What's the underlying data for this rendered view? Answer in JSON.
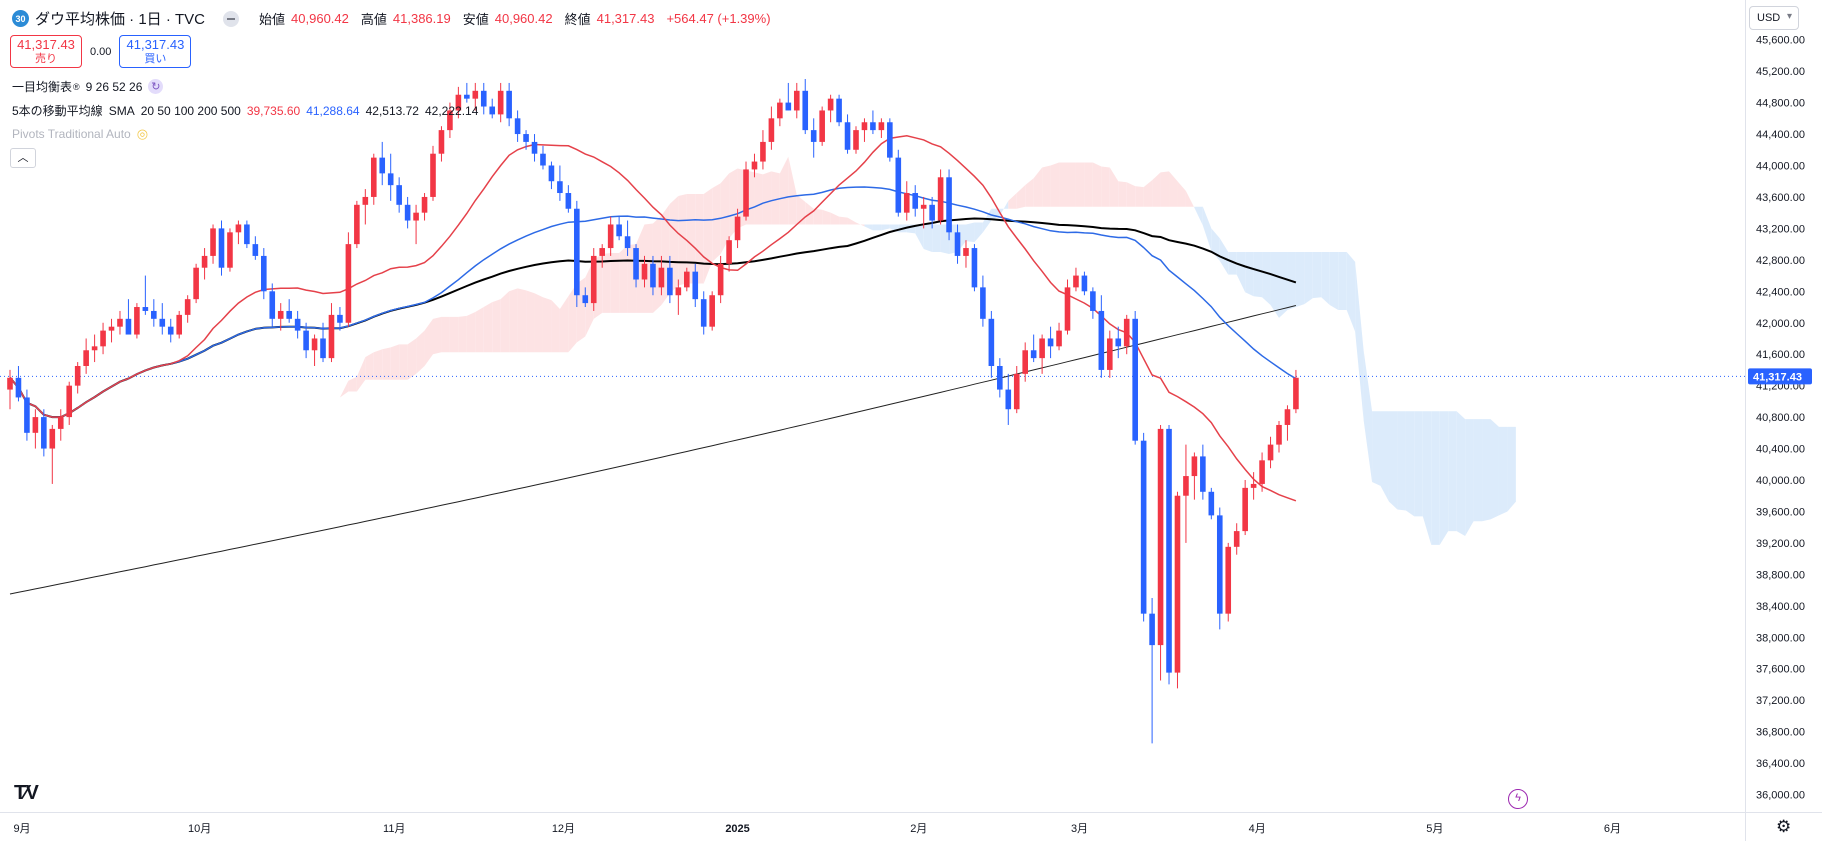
{
  "header": {
    "badge": "30",
    "title": "ダウ平均株価 · 1日 · TVC",
    "open_label": "始値",
    "open": "40,960.42",
    "high_label": "高値",
    "high": "41,386.19",
    "low_label": "安値",
    "low": "40,960.42",
    "close_label": "終値",
    "close": "41,317.43",
    "change": "+564.47 (+1.39%)"
  },
  "trade": {
    "sell_price": "41,317.43",
    "sell_label": "売り",
    "spread": "0.00",
    "buy_price": "41,317.43",
    "buy_label": "買い"
  },
  "indicators": {
    "ichimoku_name": "一目均衡表",
    "ichimoku_params": "9 26 52 26",
    "ma_name": "5本の移動平均線",
    "ma_type": "SMA",
    "ma_params": "20 50 100 200 500",
    "ma_values": [
      "39,735.60",
      "41,288.64",
      "42,513.72",
      "42,222.14"
    ],
    "pivots": "Pivots Traditional Auto"
  },
  "currency": "USD",
  "colors": {
    "up": "#f23645",
    "down": "#2962ff",
    "sma20": "#e5414a",
    "sma50": "#2d6ae6",
    "sma100": "#000000",
    "sma200": "#222222",
    "cloud_bull": "#fde3e4",
    "cloud_bear": "#dcebfb"
  },
  "chart_data": {
    "type": "candlestick",
    "y_axis": {
      "ylim": [
        35800,
        45800
      ],
      "ticks": [
        36000,
        36400,
        36800,
        37200,
        37600,
        38000,
        38400,
        38800,
        39200,
        39600,
        40000,
        40400,
        40800,
        41200,
        41600,
        42000,
        42400,
        42800,
        43200,
        43600,
        44000,
        44400,
        44800,
        45200,
        45600
      ],
      "tick_labels": [
        "36,000.00",
        "36,400.00",
        "36,800.00",
        "37,200.00",
        "37,600.00",
        "38,000.00",
        "38,400.00",
        "38,800.00",
        "39,200.00",
        "39,600.00",
        "40,000.00",
        "40,400.00",
        "40,800.00",
        "41,200.00",
        "41,600.00",
        "42,000.00",
        "42,400.00",
        "42,800.00",
        "43,200.00",
        "43,600.00",
        "44,000.00",
        "44,400.00",
        "44,800.00",
        "45,200.00",
        "45,600.00"
      ],
      "last_price": 41317.43,
      "last_price_label": "41,317.43"
    },
    "x_axis": {
      "labels": [
        "9月",
        "10月",
        "11月",
        "12月",
        "2025",
        "2月",
        "3月",
        "4月",
        "5月",
        "6月"
      ],
      "label_bar_index": [
        0,
        21,
        44,
        64,
        86,
        106,
        125,
        146,
        167,
        188
      ]
    },
    "candles": [
      [
        41150,
        41400,
        40900,
        41300
      ],
      [
        41300,
        41450,
        41000,
        41050
      ],
      [
        41050,
        41150,
        40500,
        40600
      ],
      [
        40600,
        40900,
        40400,
        40800
      ],
      [
        40800,
        40900,
        40300,
        40400
      ],
      [
        40400,
        40700,
        39950,
        40650
      ],
      [
        40650,
        40900,
        40500,
        40800
      ],
      [
        40800,
        41250,
        40700,
        41200
      ],
      [
        41200,
        41500,
        41100,
        41450
      ],
      [
        41450,
        41800,
        41350,
        41650
      ],
      [
        41650,
        41850,
        41500,
        41700
      ],
      [
        41700,
        42000,
        41600,
        41900
      ],
      [
        41900,
        42050,
        41750,
        41950
      ],
      [
        41950,
        42150,
        41850,
        42050
      ],
      [
        42050,
        42300,
        41900,
        41850
      ],
      [
        41850,
        42250,
        41800,
        42200
      ],
      [
        42200,
        42600,
        42100,
        42150
      ],
      [
        42150,
        42300,
        41950,
        42050
      ],
      [
        42050,
        42250,
        41850,
        41950
      ],
      [
        41950,
        42050,
        41750,
        41850
      ],
      [
        41850,
        42150,
        41800,
        42100
      ],
      [
        42100,
        42350,
        42000,
        42300
      ],
      [
        42300,
        42750,
        42250,
        42700
      ],
      [
        42700,
        42950,
        42550,
        42850
      ],
      [
        42850,
        43250,
        42750,
        43200
      ],
      [
        43200,
        43300,
        42600,
        42700
      ],
      [
        42700,
        43200,
        42650,
        43150
      ],
      [
        43150,
        43300,
        43000,
        43250
      ],
      [
        43250,
        43300,
        42950,
        43000
      ],
      [
        43000,
        43100,
        42800,
        42850
      ],
      [
        42850,
        42950,
        42300,
        42400
      ],
      [
        42400,
        42500,
        41950,
        42050
      ],
      [
        42050,
        42250,
        41900,
        42150
      ],
      [
        42150,
        42300,
        42000,
        42050
      ],
      [
        42050,
        42150,
        41800,
        41900
      ],
      [
        41900,
        42000,
        41550,
        41650
      ],
      [
        41650,
        41850,
        41450,
        41800
      ],
      [
        41800,
        42000,
        41500,
        41550
      ],
      [
        41550,
        42250,
        41500,
        42100
      ],
      [
        42100,
        42200,
        41900,
        42000
      ],
      [
        42000,
        43150,
        41950,
        43000
      ],
      [
        43000,
        43550,
        42950,
        43500
      ],
      [
        43500,
        43700,
        43250,
        43600
      ],
      [
        43600,
        44150,
        43500,
        44100
      ],
      [
        44100,
        44300,
        43750,
        43900
      ],
      [
        43900,
        44150,
        43550,
        43750
      ],
      [
        43750,
        43850,
        43400,
        43500
      ],
      [
        43500,
        43600,
        43200,
        43300
      ],
      [
        43300,
        43500,
        43000,
        43400
      ],
      [
        43400,
        43650,
        43300,
        43600
      ],
      [
        43600,
        44250,
        43550,
        44150
      ],
      [
        44150,
        44500,
        44050,
        44450
      ],
      [
        44450,
        44800,
        44350,
        44700
      ],
      [
        44700,
        45000,
        44600,
        44900
      ],
      [
        44900,
        45050,
        44800,
        44850
      ],
      [
        44850,
        45050,
        44700,
        44950
      ],
      [
        44950,
        45050,
        44650,
        44750
      ],
      [
        44750,
        44850,
        44600,
        44650
      ],
      [
        44650,
        45050,
        44550,
        44950
      ],
      [
        44950,
        45050,
        44500,
        44600
      ],
      [
        44600,
        44700,
        44300,
        44400
      ],
      [
        44400,
        44450,
        44200,
        44300
      ],
      [
        44300,
        44400,
        44050,
        44150
      ],
      [
        44150,
        44250,
        43950,
        44000
      ],
      [
        44000,
        44050,
        43700,
        43800
      ],
      [
        43800,
        44000,
        43550,
        43650
      ],
      [
        43650,
        43750,
        43400,
        43450
      ],
      [
        43450,
        43550,
        42200,
        42350
      ],
      [
        42350,
        42450,
        42200,
        42250
      ],
      [
        42250,
        42950,
        42150,
        42850
      ],
      [
        42850,
        43000,
        42700,
        42950
      ],
      [
        42950,
        43350,
        42850,
        43250
      ],
      [
        43250,
        43350,
        43050,
        43100
      ],
      [
        43100,
        43300,
        42850,
        42950
      ],
      [
        42950,
        43000,
        42450,
        42550
      ],
      [
        42550,
        42850,
        42450,
        42750
      ],
      [
        42750,
        42850,
        42350,
        42450
      ],
      [
        42450,
        42850,
        42350,
        42700
      ],
      [
        42700,
        42850,
        42250,
        42350
      ],
      [
        42350,
        42550,
        42100,
        42450
      ],
      [
        42450,
        42700,
        42400,
        42650
      ],
      [
        42650,
        42750,
        42200,
        42300
      ],
      [
        42300,
        42400,
        41850,
        41950
      ],
      [
        41950,
        42400,
        41900,
        42350
      ],
      [
        42350,
        42850,
        42250,
        42750
      ],
      [
        42750,
        43100,
        42650,
        43050
      ],
      [
        43050,
        43450,
        42950,
        43350
      ],
      [
        43350,
        44050,
        43300,
        43950
      ],
      [
        43950,
        44150,
        43850,
        44050
      ],
      [
        44050,
        44450,
        43950,
        44300
      ],
      [
        44300,
        44750,
        44200,
        44600
      ],
      [
        44600,
        44850,
        44500,
        44800
      ],
      [
        44800,
        45050,
        44700,
        44700
      ],
      [
        44700,
        45050,
        44600,
        44950
      ],
      [
        44950,
        45100,
        44400,
        44450
      ],
      [
        44450,
        44600,
        44100,
        44300
      ],
      [
        44300,
        44750,
        44250,
        44700
      ],
      [
        44700,
        44900,
        44550,
        44850
      ],
      [
        44850,
        44900,
        44500,
        44550
      ],
      [
        44550,
        44650,
        44150,
        44200
      ],
      [
        44200,
        44500,
        44150,
        44450
      ],
      [
        44450,
        44600,
        44300,
        44550
      ],
      [
        44550,
        44700,
        44400,
        44450
      ],
      [
        44450,
        44600,
        44350,
        44550
      ],
      [
        44550,
        44600,
        44050,
        44100
      ],
      [
        44100,
        44200,
        43350,
        43400
      ],
      [
        43400,
        43800,
        43300,
        43650
      ],
      [
        43650,
        43750,
        43350,
        43450
      ],
      [
        43450,
        43600,
        43200,
        43500
      ],
      [
        43500,
        43600,
        43200,
        43300
      ],
      [
        43300,
        43950,
        43250,
        43850
      ],
      [
        43850,
        43950,
        43050,
        43150
      ],
      [
        43150,
        43250,
        42750,
        42850
      ],
      [
        42850,
        43050,
        42700,
        42950
      ],
      [
        42950,
        43000,
        42400,
        42450
      ],
      [
        42450,
        42600,
        41950,
        42050
      ],
      [
        42050,
        42150,
        41300,
        41450
      ],
      [
        41450,
        41550,
        41050,
        41150
      ],
      [
        41150,
        41350,
        40700,
        40900
      ],
      [
        40900,
        41450,
        40850,
        41350
      ],
      [
        41350,
        41750,
        41250,
        41650
      ],
      [
        41650,
        41850,
        41500,
        41550
      ],
      [
        41550,
        41850,
        41350,
        41800
      ],
      [
        41800,
        41950,
        41550,
        41700
      ],
      [
        41700,
        42000,
        41650,
        41900
      ],
      [
        41900,
        42550,
        41850,
        42450
      ],
      [
        42450,
        42700,
        42400,
        42600
      ],
      [
        42600,
        42650,
        42350,
        42400
      ],
      [
        42400,
        42450,
        42050,
        42150
      ],
      [
        42150,
        42350,
        41300,
        41400
      ],
      [
        41400,
        41900,
        41300,
        41800
      ],
      [
        41800,
        41950,
        41550,
        41700
      ],
      [
        41700,
        42100,
        41600,
        42050
      ],
      [
        42050,
        42150,
        40450,
        40500
      ],
      [
        40500,
        40600,
        38200,
        38300
      ],
      [
        38300,
        38500,
        36650,
        37900
      ],
      [
        37900,
        40700,
        37450,
        40650
      ],
      [
        40650,
        40700,
        37400,
        37550
      ],
      [
        37550,
        39850,
        37350,
        39800
      ],
      [
        39800,
        40450,
        39200,
        40050
      ],
      [
        40050,
        40350,
        39750,
        40300
      ],
      [
        40300,
        40450,
        39750,
        39850
      ],
      [
        39850,
        39900,
        39500,
        39550
      ],
      [
        39550,
        39650,
        38100,
        38300
      ],
      [
        38300,
        39200,
        38200,
        39150
      ],
      [
        39150,
        39450,
        39050,
        39350
      ],
      [
        39350,
        40000,
        39300,
        39900
      ],
      [
        39900,
        40100,
        39750,
        39950
      ],
      [
        39950,
        40350,
        39850,
        40250
      ],
      [
        40250,
        40550,
        40150,
        40450
      ],
      [
        40450,
        40750,
        40350,
        40700
      ],
      [
        40700,
        40950,
        40500,
        40900
      ],
      [
        40900,
        41400,
        40850,
        41300
      ]
    ],
    "sma": [
      {
        "period": 20,
        "value": 39735.6
      },
      {
        "period": 50,
        "value": 41288.64
      },
      {
        "period": 100,
        "value": 42513.72
      },
      {
        "period": 200,
        "value": 42222.14
      }
    ],
    "ichimoku_params": [
      9,
      26,
      52,
      26
    ]
  }
}
